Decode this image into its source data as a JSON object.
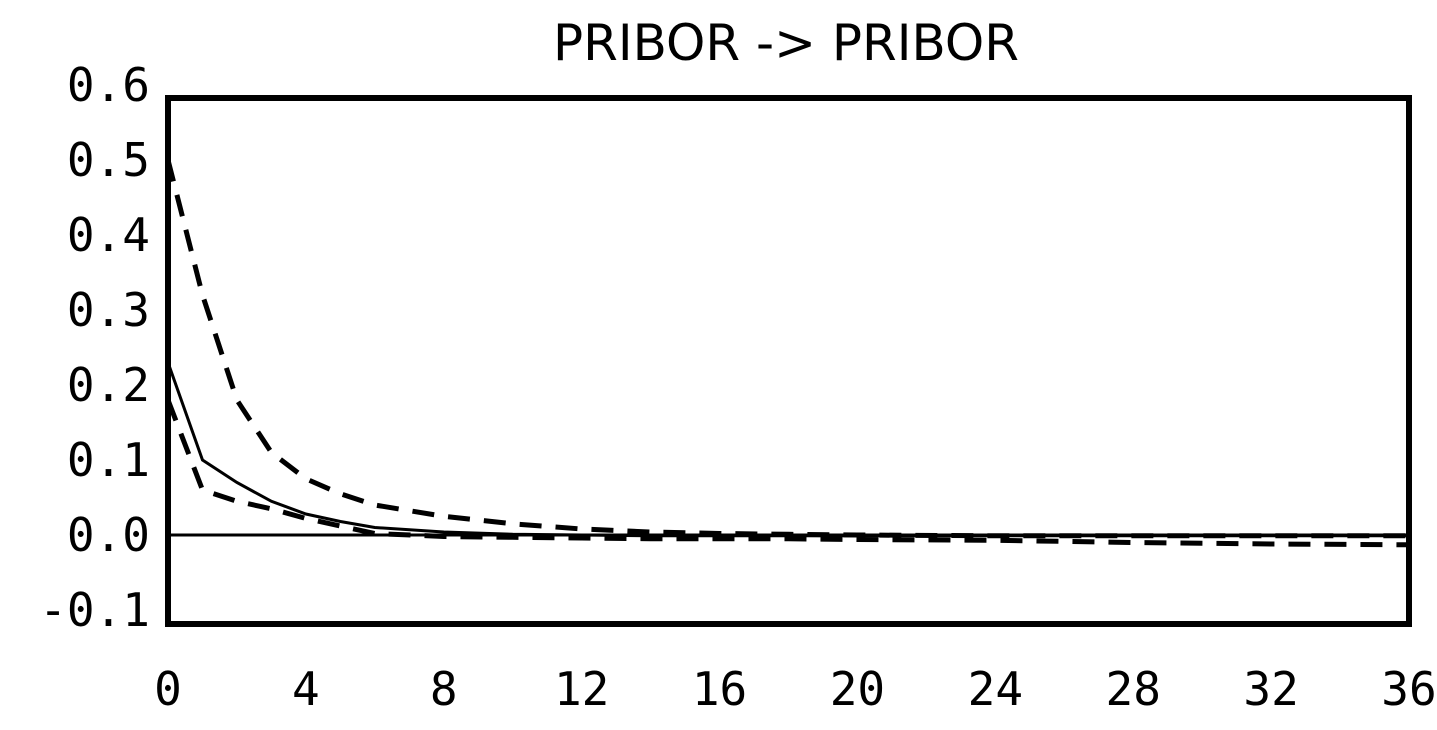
{
  "chart_data": {
    "type": "line",
    "title": "PRIBOR -> PRIBOR",
    "xlabel": "",
    "ylabel": "",
    "xlim": [
      0,
      36
    ],
    "ylim": [
      -0.1,
      0.6
    ],
    "x_ticks": [
      "0",
      "4",
      "8",
      "12",
      "16",
      "20",
      "24",
      "28",
      "32",
      "36"
    ],
    "y_ticks": [
      "0.6",
      "0.5",
      "0.4",
      "0.3",
      "0.2",
      "0.1",
      "0.0",
      "-0.1"
    ],
    "grid": false,
    "zero_line": true,
    "x": [
      0,
      1,
      2,
      3,
      4,
      5,
      6,
      8,
      10,
      12,
      14,
      16,
      18,
      20,
      24,
      28,
      32,
      36
    ],
    "series": [
      {
        "style": "solid",
        "values": [
          0.23,
          0.1,
          0.07,
          0.045,
          0.028,
          0.018,
          0.01,
          0.004,
          0.001,
          0.0,
          -0.001,
          -0.001,
          -0.001,
          -0.001,
          -0.001,
          -0.001,
          -0.001,
          -0.001
        ]
      },
      {
        "style": "dashed",
        "values": [
          0.5,
          0.32,
          0.18,
          0.11,
          0.075,
          0.055,
          0.04,
          0.025,
          0.015,
          0.008,
          0.004,
          0.002,
          0.001,
          0.0,
          -0.001,
          -0.001,
          -0.001,
          -0.001
        ]
      },
      {
        "style": "dashed",
        "values": [
          0.18,
          0.06,
          0.045,
          0.035,
          0.022,
          0.012,
          0.002,
          -0.002,
          -0.003,
          -0.004,
          -0.005,
          -0.005,
          -0.005,
          -0.006,
          -0.007,
          -0.01,
          -0.012,
          -0.013
        ]
      }
    ]
  }
}
